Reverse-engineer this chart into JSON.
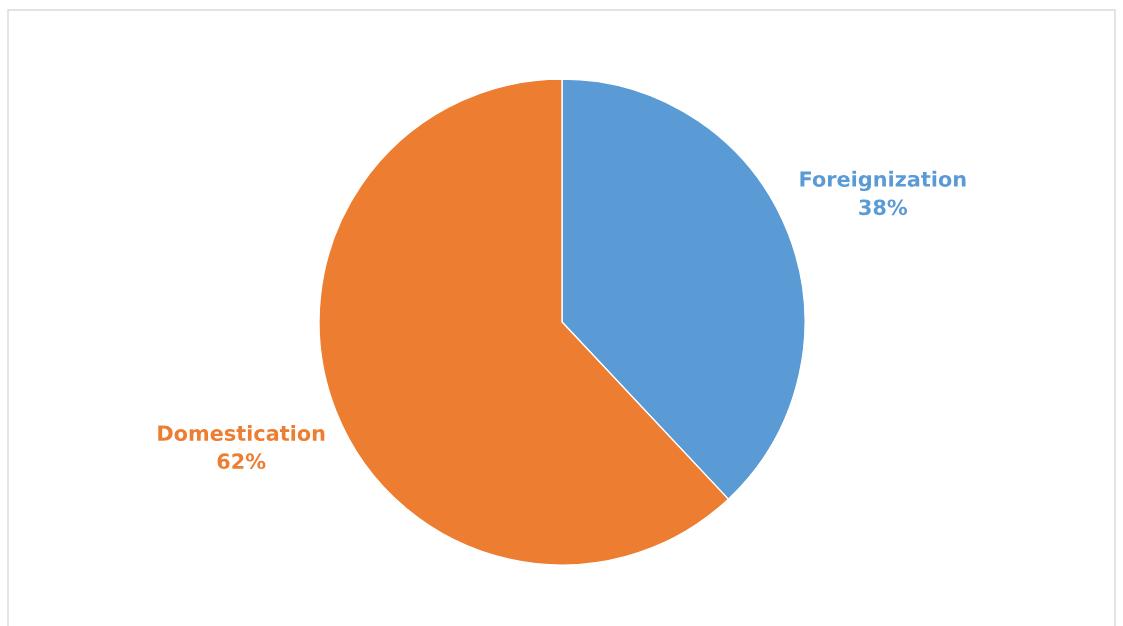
{
  "chart_data": {
    "type": "pie",
    "categories": [
      "Foreignization",
      "Domestication"
    ],
    "values": [
      38,
      62
    ],
    "colors": [
      "#5b9bd5",
      "#ed7d31"
    ],
    "value_labels": [
      "38%",
      "62%"
    ],
    "legend": false
  }
}
